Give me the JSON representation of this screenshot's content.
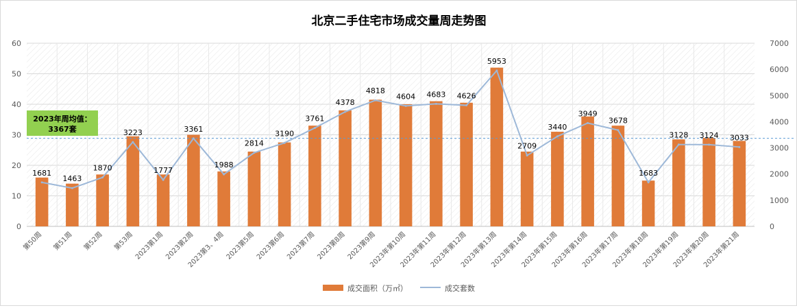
{
  "chart_data": {
    "type": "bar+line",
    "title": "北京二手住宅市场成交量周走势图",
    "categories": [
      "第50周",
      "第51周",
      "第52周",
      "第53周",
      "2023第1周",
      "2023第2周",
      "2023第3、4周",
      "2023第5周",
      "2023第6周",
      "2023第7周",
      "2023第8周",
      "2023第9周",
      "2023年第10周",
      "2023年第11周",
      "2023年第12周",
      "2023年第13周",
      "2023年第14周",
      "2023年第15周",
      "2023年第16周",
      "2023年第17周",
      "2023年第18周",
      "2023年第19周",
      "2023年第20周",
      "2023年第21周"
    ],
    "series": [
      {
        "name": "成交面积（万㎡）",
        "type": "bar",
        "axis": "left",
        "color": "#E07B39",
        "values": [
          16,
          14,
          17,
          29.5,
          17,
          30,
          18,
          24.5,
          27.5,
          33,
          38,
          41.5,
          40,
          41,
          40.5,
          52,
          24.5,
          31,
          36,
          33,
          15,
          28.5,
          29,
          28
        ]
      },
      {
        "name": "成交套数",
        "type": "line",
        "axis": "right",
        "color": "#9DB8D8",
        "values": [
          1681,
          1463,
          1870,
          3223,
          1777,
          3361,
          1988,
          2814,
          3190,
          3761,
          4378,
          4818,
          4604,
          4683,
          4626,
          5953,
          2709,
          3440,
          3949,
          3678,
          1683,
          3128,
          3124,
          3033
        ]
      }
    ],
    "y_left": {
      "min": 0,
      "max": 60,
      "ticks": [
        0,
        10,
        20,
        30,
        40,
        50,
        60
      ]
    },
    "y_right": {
      "min": 0,
      "max": 7000,
      "ticks": [
        0,
        1000,
        2000,
        3000,
        4000,
        5000,
        6000,
        7000
      ]
    },
    "reference_line": {
      "value": 3367,
      "axis": "right",
      "label_line1": "2023年周均值：",
      "label_line2": "3367套",
      "label_bg": "#92D050"
    },
    "legend_position": "bottom",
    "grid": true,
    "hatched_background": true
  }
}
